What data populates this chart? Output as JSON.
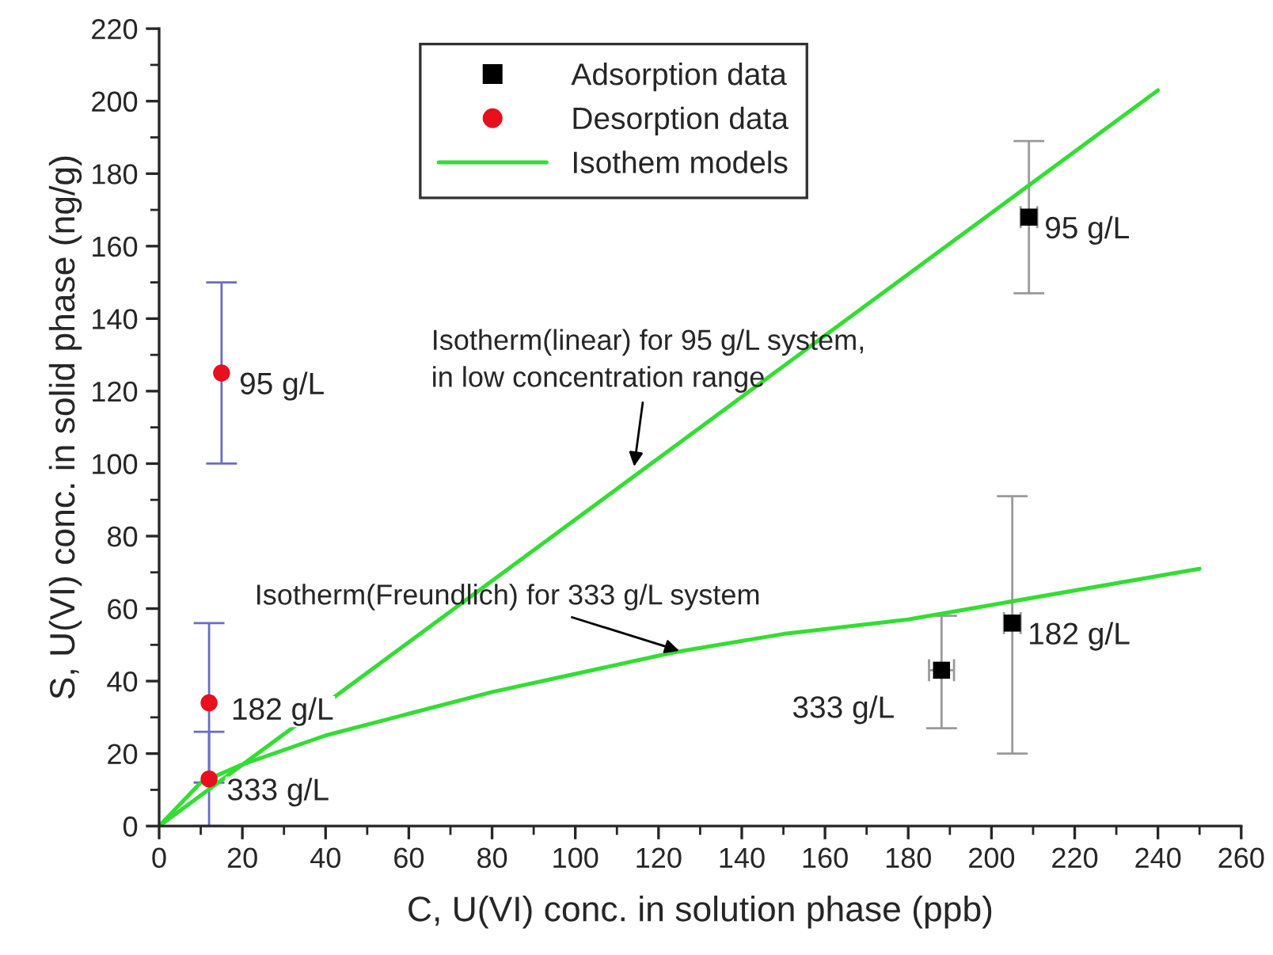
{
  "chart_data": {
    "type": "scatter",
    "xlabel": "C, U(VI) conc. in solution phase (ppb)",
    "ylabel": "S, U(VI) conc. in solid phase (ng/g)",
    "xlim": [
      0,
      260
    ],
    "ylim": [
      0,
      220
    ],
    "xticks": [
      0,
      20,
      40,
      60,
      80,
      100,
      120,
      140,
      160,
      180,
      200,
      220,
      240,
      260
    ],
    "yticks": [
      0,
      20,
      40,
      60,
      80,
      100,
      120,
      140,
      160,
      180,
      200,
      220
    ],
    "grid": false,
    "legend": "top",
    "series": [
      {
        "name": "Adsorption data",
        "marker": "square",
        "color": "#000000",
        "x": [
          209,
          205,
          188
        ],
        "values": [
          168,
          56,
          43
        ],
        "errors": [
          [
            147,
            189
          ],
          [
            20,
            91
          ],
          [
            27,
            58
          ]
        ],
        "xerrors": [
          [
            207,
            211
          ],
          [
            203,
            207
          ],
          [
            185,
            191
          ]
        ]
      },
      {
        "name": "Desorption data",
        "marker": "circle",
        "color": "#e8101e",
        "x": [
          15,
          12,
          12
        ],
        "values": [
          125,
          34,
          13
        ],
        "errors": [
          [
            100,
            150
          ],
          [
            12,
            56
          ],
          [
            0,
            26
          ]
        ]
      },
      {
        "name": "Isothem models",
        "type": "line",
        "marker": "none",
        "line_style": "solid",
        "color": "#33dd33",
        "x": [
          0,
          240
        ],
        "values": [
          0,
          203
        ]
      },
      {
        "type": "line",
        "marker": "none",
        "line_style": "solid",
        "color": "#33dd33",
        "x": [
          0,
          10,
          20,
          40,
          60,
          80,
          100,
          124,
          150,
          180,
          200,
          250
        ],
        "values": [
          0,
          12,
          17,
          25,
          31,
          37,
          42,
          48,
          53,
          57,
          61,
          71
        ]
      }
    ],
    "annotations": [
      {
        "text": "Isotherm(linear) for 95 g/L system,\nin low concentration range",
        "x": 114,
        "y": 98
      },
      {
        "text": "Isotherm(Freundlich) for 333 g/L system",
        "x": 126,
        "y": 48
      },
      {
        "text": "95 g/L",
        "x": 15,
        "y": 125
      },
      {
        "text": "182 g/L",
        "x": 12,
        "y": 34
      },
      {
        "text": "333 g/L",
        "x": 12,
        "y": 13
      },
      {
        "text": "95 g/L",
        "x": 209,
        "y": 168
      },
      {
        "text": "182 g/L",
        "x": 205,
        "y": 56
      },
      {
        "text": "333 g/L",
        "x": 188,
        "y": 43
      }
    ]
  }
}
